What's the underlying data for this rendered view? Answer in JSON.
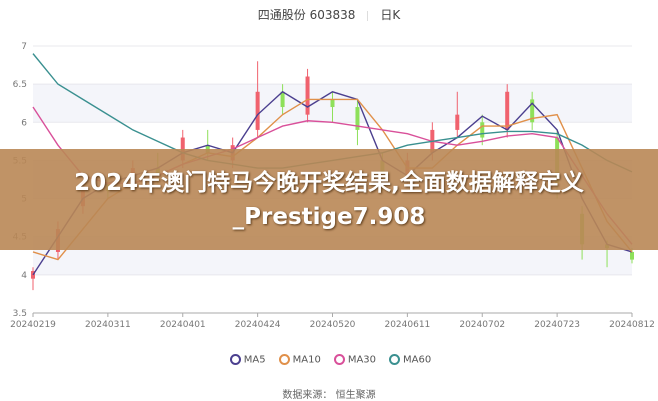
{
  "header": {
    "stock": "四通股份 603838",
    "period": "日K"
  },
  "banner": {
    "text": "2024年澳门特马今晚开奖结果,全面数据解释定义_Prestige7.908"
  },
  "source": "数据来源： 恒生聚源",
  "chart_data": {
    "type": "candlestick",
    "ylim": [
      3.5,
      7
    ],
    "yticks": [
      "7",
      "6.5",
      "6",
      "5.5",
      "5",
      "4.5",
      "4",
      "3.5"
    ],
    "xticks": [
      "20240219",
      "20240311",
      "20240401",
      "20240424",
      "20240520",
      "20240611",
      "20240702",
      "20240723",
      "20240812"
    ],
    "grid": "horizontal bands",
    "legend": "bottom",
    "up_color": "#f0626e",
    "down_color": "#8ee05a",
    "candles": [
      [
        3.95,
        4.05,
        4.1,
        3.8
      ],
      [
        4.3,
        4.6,
        4.7,
        4.2
      ],
      [
        4.9,
        5.1,
        5.2,
        4.8
      ],
      [
        5.2,
        5.1,
        5.3,
        5.0
      ],
      [
        5.2,
        5.4,
        5.5,
        5.1
      ],
      [
        5.4,
        5.3,
        5.6,
        5.2
      ],
      [
        5.5,
        5.8,
        5.9,
        5.4
      ],
      [
        5.7,
        5.6,
        5.9,
        5.5
      ],
      [
        5.5,
        5.7,
        5.8,
        5.4
      ],
      [
        5.9,
        6.4,
        6.8,
        5.8
      ],
      [
        6.4,
        6.2,
        6.5,
        6.1
      ],
      [
        6.1,
        6.6,
        6.7,
        6.0
      ],
      [
        6.3,
        6.2,
        6.4,
        6.0
      ],
      [
        6.2,
        5.9,
        6.3,
        5.7
      ],
      [
        5.5,
        5.3,
        5.6,
        5.1
      ],
      [
        5.3,
        5.5,
        5.6,
        5.2
      ],
      [
        5.6,
        5.9,
        6.0,
        5.5
      ],
      [
        5.9,
        6.1,
        6.4,
        5.8
      ],
      [
        6.0,
        5.8,
        6.1,
        5.7
      ],
      [
        5.9,
        6.4,
        6.5,
        5.8
      ],
      [
        6.3,
        6.0,
        6.4,
        5.9
      ],
      [
        5.8,
        5.2,
        5.9,
        5.0
      ],
      [
        4.8,
        4.4,
        4.9,
        4.2
      ],
      [
        4.4,
        4.35,
        4.45,
        4.1
      ],
      [
        4.3,
        4.2,
        4.35,
        4.15
      ]
    ],
    "series": [
      {
        "name": "MA5",
        "color": "#4b3f8f",
        "values": [
          4.0,
          4.5,
          5.0,
          5.2,
          5.3,
          5.4,
          5.6,
          5.7,
          5.6,
          6.1,
          6.4,
          6.2,
          6.4,
          6.3,
          5.5,
          5.3,
          5.6,
          5.8,
          6.08,
          5.9,
          6.25,
          5.9,
          5.0,
          4.4,
          4.3
        ]
      },
      {
        "name": "MA10",
        "color": "#e0904a",
        "values": [
          4.3,
          4.2,
          4.6,
          5.0,
          5.2,
          5.3,
          5.45,
          5.6,
          5.55,
          5.8,
          6.1,
          6.3,
          6.3,
          6.3,
          5.9,
          5.4,
          5.4,
          5.7,
          5.95,
          5.95,
          6.05,
          6.1,
          5.4,
          4.7,
          4.3
        ]
      },
      {
        "name": "MA30",
        "color": "#d9509a",
        "values": [
          6.2,
          5.7,
          5.3,
          5.2,
          5.2,
          5.3,
          5.45,
          5.55,
          5.65,
          5.8,
          5.95,
          6.02,
          6.0,
          5.95,
          5.9,
          5.85,
          5.75,
          5.7,
          5.75,
          5.82,
          5.85,
          5.8,
          5.3,
          4.8,
          4.4
        ]
      },
      {
        "name": "MA60",
        "color": "#3a9090",
        "values": [
          6.9,
          6.5,
          6.3,
          6.1,
          5.9,
          5.75,
          5.6,
          5.5,
          5.45,
          5.4,
          5.4,
          5.45,
          5.5,
          5.55,
          5.6,
          5.7,
          5.75,
          5.8,
          5.85,
          5.88,
          5.88,
          5.85,
          5.7,
          5.5,
          5.35
        ]
      }
    ]
  }
}
